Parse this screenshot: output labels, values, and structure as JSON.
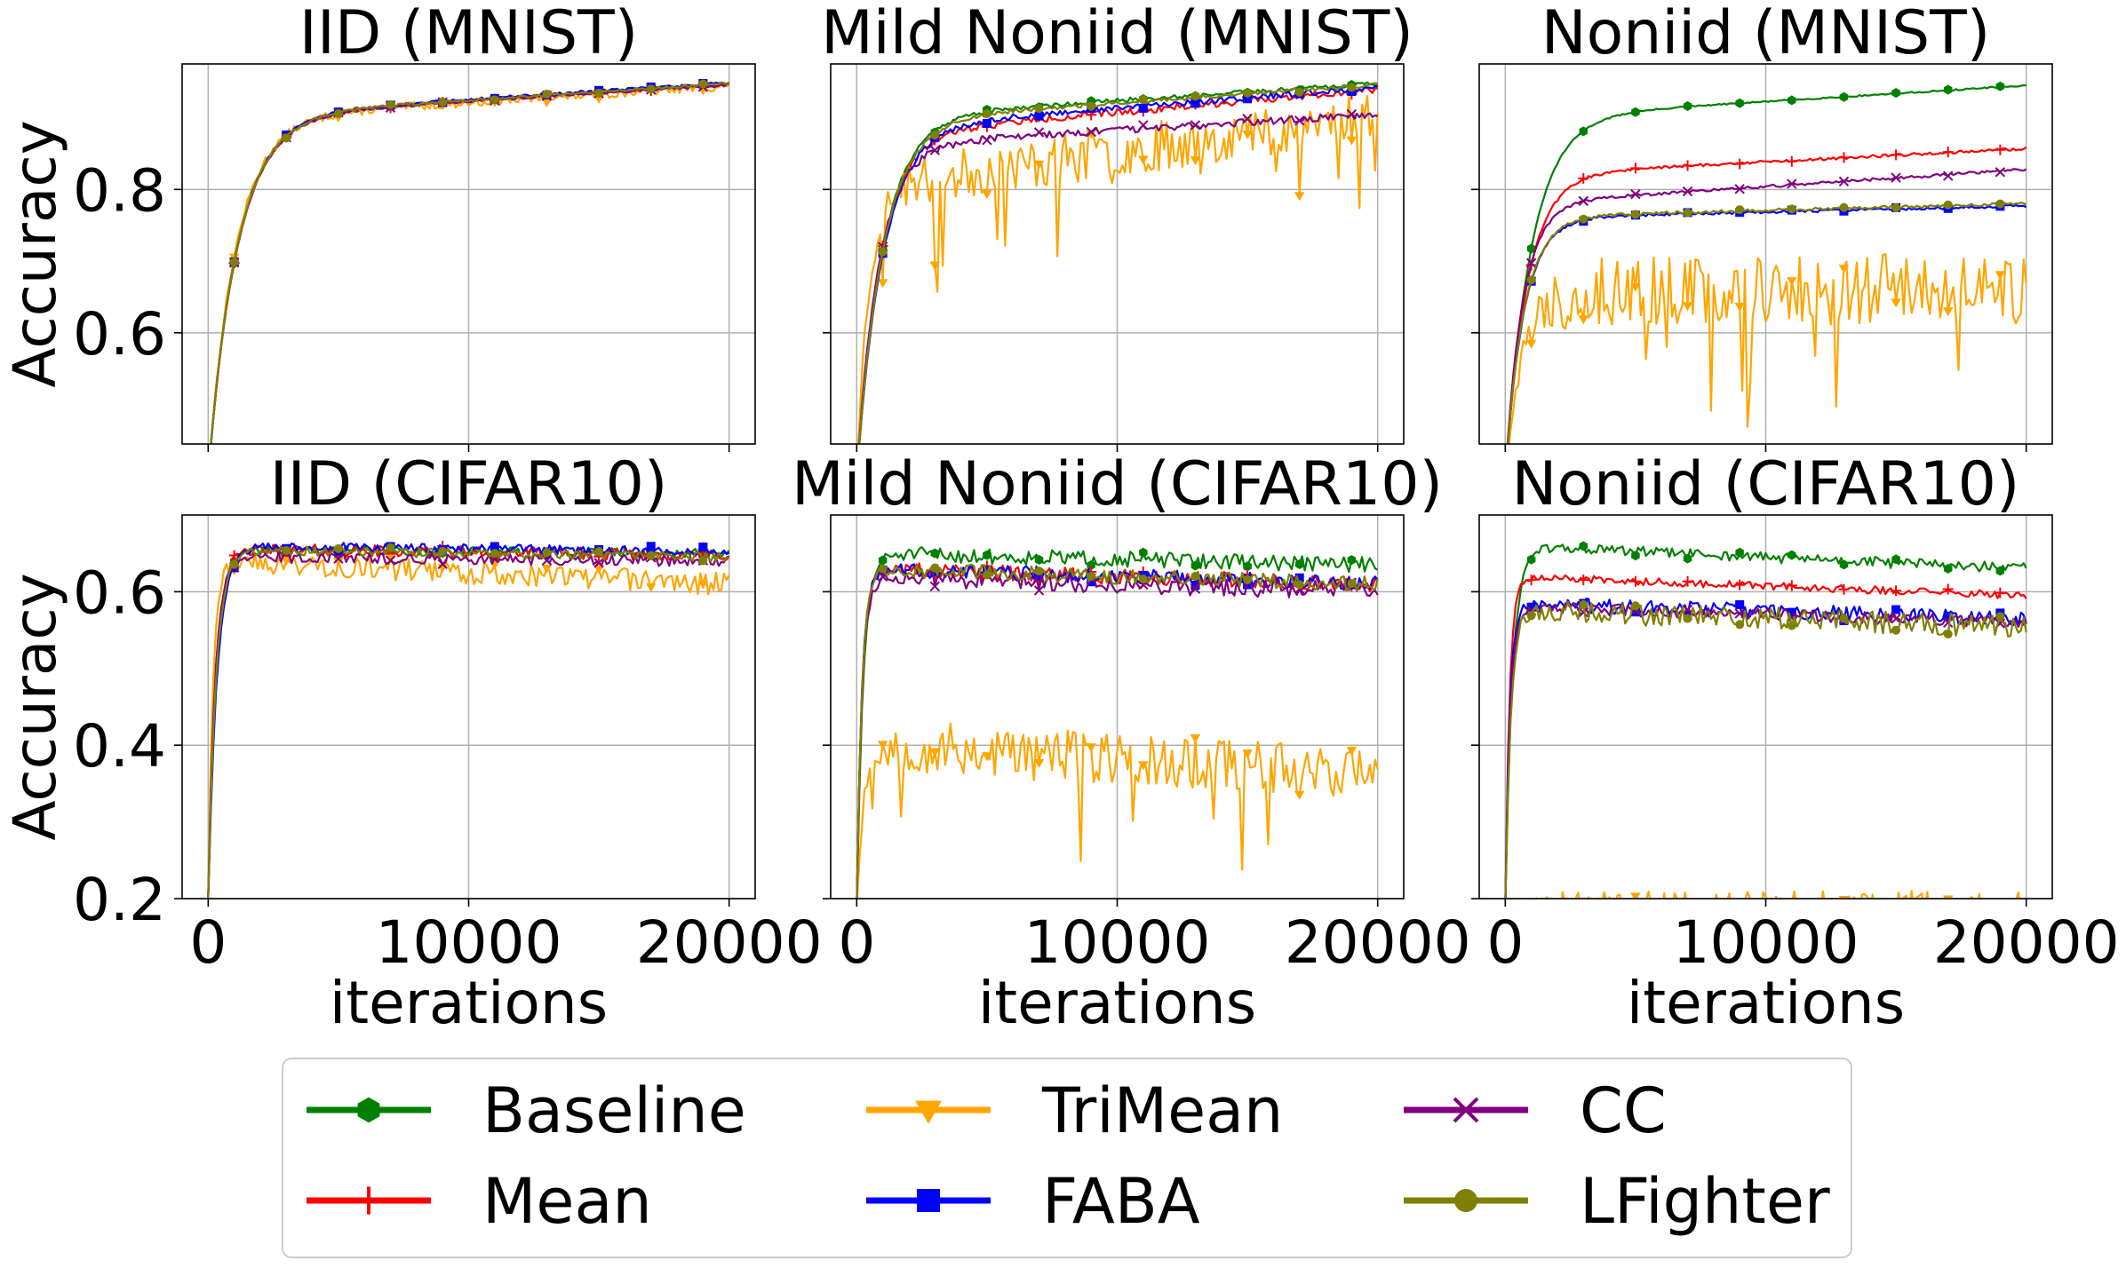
{
  "chart_data": [
    {
      "id": "iid_mnist",
      "type": "line",
      "title": "IID (MNIST)",
      "xlabel": "",
      "ylabel": "Accuracy",
      "xlim": [
        -1000,
        21000
      ],
      "ylim": [
        0.445,
        0.975
      ],
      "yticks": [
        0.6,
        0.8
      ],
      "ytick_labels": [
        "0.6",
        "0.8"
      ],
      "xticks": [
        0,
        10000,
        20000
      ],
      "xtick_labels": [],
      "grid": true,
      "series": [
        {
          "name": "Baseline",
          "start": 0.4,
          "plateau": 0.9,
          "final": 0.948,
          "k": 0.9,
          "noise": 0.002,
          "seed": 11
        },
        {
          "name": "Mean",
          "start": 0.4,
          "plateau": 0.9,
          "final": 0.946,
          "k": 0.9,
          "noise": 0.002,
          "seed": 12
        },
        {
          "name": "TriMean",
          "start": 0.4,
          "plateau": 0.898,
          "final": 0.944,
          "k": 0.95,
          "noise": 0.006,
          "seed": 13
        },
        {
          "name": "FABA",
          "start": 0.4,
          "plateau": 0.902,
          "final": 0.949,
          "k": 0.9,
          "noise": 0.002,
          "seed": 14
        },
        {
          "name": "CC",
          "start": 0.4,
          "plateau": 0.9,
          "final": 0.946,
          "k": 0.9,
          "noise": 0.002,
          "seed": 15
        },
        {
          "name": "LFighter",
          "start": 0.4,
          "plateau": 0.901,
          "final": 0.948,
          "k": 0.9,
          "noise": 0.002,
          "seed": 16
        }
      ]
    },
    {
      "id": "mild_mnist",
      "type": "line",
      "title": "Mild Noniid (MNIST)",
      "xlabel": "",
      "ylabel": "",
      "xlim": [
        -1000,
        21000
      ],
      "ylim": [
        0.445,
        0.975
      ],
      "yticks": [
        0.6,
        0.8
      ],
      "ytick_labels": [],
      "xticks": [
        0,
        10000,
        20000
      ],
      "xtick_labels": [],
      "grid": true,
      "series": [
        {
          "name": "Baseline",
          "start": 0.4,
          "plateau": 0.9,
          "final": 0.948,
          "k": 1.0,
          "noise": 0.003,
          "seed": 21
        },
        {
          "name": "Mean",
          "start": 0.4,
          "plateau": 0.875,
          "final": 0.94,
          "k": 1.1,
          "noise": 0.005,
          "seed": 22
        },
        {
          "name": "TriMean",
          "start": 0.4,
          "plateau": 0.8,
          "final": 0.905,
          "k": 2.2,
          "noise": 0.035,
          "seed": 23
        },
        {
          "name": "FABA",
          "start": 0.4,
          "plateau": 0.885,
          "final": 0.942,
          "k": 1.0,
          "noise": 0.004,
          "seed": 24
        },
        {
          "name": "CC",
          "start": 0.4,
          "plateau": 0.86,
          "final": 0.905,
          "k": 1.2,
          "noise": 0.005,
          "seed": 25
        },
        {
          "name": "LFighter",
          "start": 0.4,
          "plateau": 0.895,
          "final": 0.946,
          "k": 1.0,
          "noise": 0.003,
          "seed": 26
        }
      ]
    },
    {
      "id": "noniid_mnist",
      "type": "line",
      "title": "Noniid (MNIST)",
      "xlabel": "",
      "ylabel": "",
      "xlim": [
        -1000,
        21000
      ],
      "ylim": [
        0.445,
        0.975
      ],
      "yticks": [
        0.6,
        0.8
      ],
      "ytick_labels": [],
      "xticks": [
        0,
        10000,
        20000
      ],
      "xtick_labels": [],
      "grid": true,
      "series": [
        {
          "name": "Baseline",
          "start": 0.4,
          "plateau": 0.9,
          "final": 0.945,
          "k": 1.0,
          "noise": 0.001,
          "seed": 31
        },
        {
          "name": "Mean",
          "start": 0.4,
          "plateau": 0.82,
          "final": 0.857,
          "k": 1.2,
          "noise": 0.002,
          "seed": 32
        },
        {
          "name": "TriMean",
          "start": 0.4,
          "plateau": 0.66,
          "final": 0.66,
          "k": 1.5,
          "noise": 0.05,
          "seed": 33
        },
        {
          "name": "FABA",
          "start": 0.4,
          "plateau": 0.76,
          "final": 0.777,
          "k": 1.4,
          "noise": 0.002,
          "seed": 34
        },
        {
          "name": "CC",
          "start": 0.4,
          "plateau": 0.78,
          "final": 0.828,
          "k": 1.5,
          "noise": 0.002,
          "seed": 35
        },
        {
          "name": "LFighter",
          "start": 0.4,
          "plateau": 0.762,
          "final": 0.78,
          "k": 1.4,
          "noise": 0.002,
          "seed": 36
        }
      ]
    },
    {
      "id": "iid_cifar",
      "type": "line",
      "title": "IID (CIFAR10)",
      "xlabel": "iterations",
      "ylabel": "Accuracy",
      "xlim": [
        -1000,
        21000
      ],
      "ylim": [
        0.2,
        0.7
      ],
      "yticks": [
        0.2,
        0.4,
        0.6
      ],
      "ytick_labels": [
        "0.2",
        "0.4",
        "0.6"
      ],
      "xticks": [
        0,
        10000,
        20000
      ],
      "xtick_labels": [
        "0",
        "10000",
        "20000"
      ],
      "grid": true,
      "series": [
        {
          "name": "Baseline",
          "start": 0.2,
          "plateau": 0.655,
          "final": 0.65,
          "k": 3.2,
          "noise": 0.006,
          "seed": 41
        },
        {
          "name": "Mean",
          "start": 0.2,
          "plateau": 0.655,
          "final": 0.648,
          "k": 3.6,
          "noise": 0.008,
          "seed": 42
        },
        {
          "name": "TriMean",
          "start": 0.2,
          "plateau": 0.64,
          "final": 0.61,
          "k": 5.5,
          "noise": 0.015,
          "seed": 43
        },
        {
          "name": "FABA",
          "start": 0.2,
          "plateau": 0.66,
          "final": 0.652,
          "k": 2.9,
          "noise": 0.006,
          "seed": 44
        },
        {
          "name": "CC",
          "start": 0.2,
          "plateau": 0.645,
          "final": 0.64,
          "k": 3.8,
          "noise": 0.007,
          "seed": 45
        },
        {
          "name": "LFighter",
          "start": 0.2,
          "plateau": 0.655,
          "final": 0.645,
          "k": 3.3,
          "noise": 0.006,
          "seed": 46
        }
      ]
    },
    {
      "id": "mild_cifar",
      "type": "line",
      "title": "Mild Noniid (CIFAR10)",
      "xlabel": "iterations",
      "ylabel": "",
      "xlim": [
        -1000,
        21000
      ],
      "ylim": [
        0.2,
        0.7
      ],
      "yticks": [
        0.2,
        0.4,
        0.6
      ],
      "ytick_labels": [],
      "xticks": [
        0,
        10000,
        20000
      ],
      "xtick_labels": [
        "0",
        "10000",
        "20000"
      ],
      "grid": true,
      "series": [
        {
          "name": "Baseline",
          "start": 0.19,
          "plateau": 0.65,
          "final": 0.635,
          "k": 4.0,
          "noise": 0.01,
          "seed": 51
        },
        {
          "name": "Mean",
          "start": 0.19,
          "plateau": 0.63,
          "final": 0.61,
          "k": 5.0,
          "noise": 0.01,
          "seed": 52
        },
        {
          "name": "TriMean",
          "start": 0.19,
          "plateau": 0.4,
          "final": 0.365,
          "k": 4.0,
          "noise": 0.035,
          "seed": 53
        },
        {
          "name": "FABA",
          "start": 0.19,
          "plateau": 0.63,
          "final": 0.61,
          "k": 5.0,
          "noise": 0.01,
          "seed": 54
        },
        {
          "name": "CC",
          "start": 0.19,
          "plateau": 0.62,
          "final": 0.6,
          "k": 5.0,
          "noise": 0.012,
          "seed": 55
        },
        {
          "name": "LFighter",
          "start": 0.19,
          "plateau": 0.63,
          "final": 0.61,
          "k": 5.0,
          "noise": 0.01,
          "seed": 56
        }
      ]
    },
    {
      "id": "noniid_cifar",
      "type": "line",
      "title": "Noniid (CIFAR10)",
      "xlabel": "iterations",
      "ylabel": "",
      "xlim": [
        -1000,
        21000
      ],
      "ylim": [
        0.2,
        0.7
      ],
      "yticks": [
        0.2,
        0.4,
        0.6
      ],
      "ytick_labels": [],
      "xticks": [
        0,
        10000,
        20000
      ],
      "xtick_labels": [
        "0",
        "10000",
        "20000"
      ],
      "grid": true,
      "series": [
        {
          "name": "Baseline",
          "start": 0.19,
          "plateau": 0.66,
          "final": 0.63,
          "k": 3.6,
          "noise": 0.007,
          "seed": 61
        },
        {
          "name": "Mean",
          "start": 0.19,
          "plateau": 0.62,
          "final": 0.595,
          "k": 6.0,
          "noise": 0.005,
          "seed": 62
        },
        {
          "name": "TriMean",
          "start": 0.19,
          "plateau": 0.19,
          "final": 0.19,
          "k": 3.0,
          "noise": 0.02,
          "seed": 63
        },
        {
          "name": "FABA",
          "start": 0.19,
          "plateau": 0.585,
          "final": 0.565,
          "k": 6.0,
          "noise": 0.01,
          "seed": 64
        },
        {
          "name": "CC",
          "start": 0.19,
          "plateau": 0.58,
          "final": 0.56,
          "k": 5.5,
          "noise": 0.008,
          "seed": 65
        },
        {
          "name": "LFighter",
          "start": 0.19,
          "plateau": 0.575,
          "final": 0.555,
          "k": 5.0,
          "noise": 0.015,
          "seed": 66
        }
      ]
    }
  ],
  "legend": {
    "placement": "bottom-center",
    "ncol": 3,
    "entries": [
      {
        "name": "Baseline",
        "color": "#008000",
        "marker": "hexagon"
      },
      {
        "name": "TriMean",
        "color": "#FFA500",
        "marker": "triangle-down"
      },
      {
        "name": "CC",
        "color": "#800080",
        "marker": "x"
      },
      {
        "name": "Mean",
        "color": "#FF0000",
        "marker": "plus"
      },
      {
        "name": "FABA",
        "color": "#0000FF",
        "marker": "square"
      },
      {
        "name": "LFighter",
        "color": "#808000",
        "marker": "circle"
      }
    ]
  },
  "series_colors": {
    "Baseline": "#008000",
    "Mean": "#FF0000",
    "TriMean": "#FFA500",
    "FABA": "#0000FF",
    "CC": "#800080",
    "LFighter": "#808000"
  }
}
